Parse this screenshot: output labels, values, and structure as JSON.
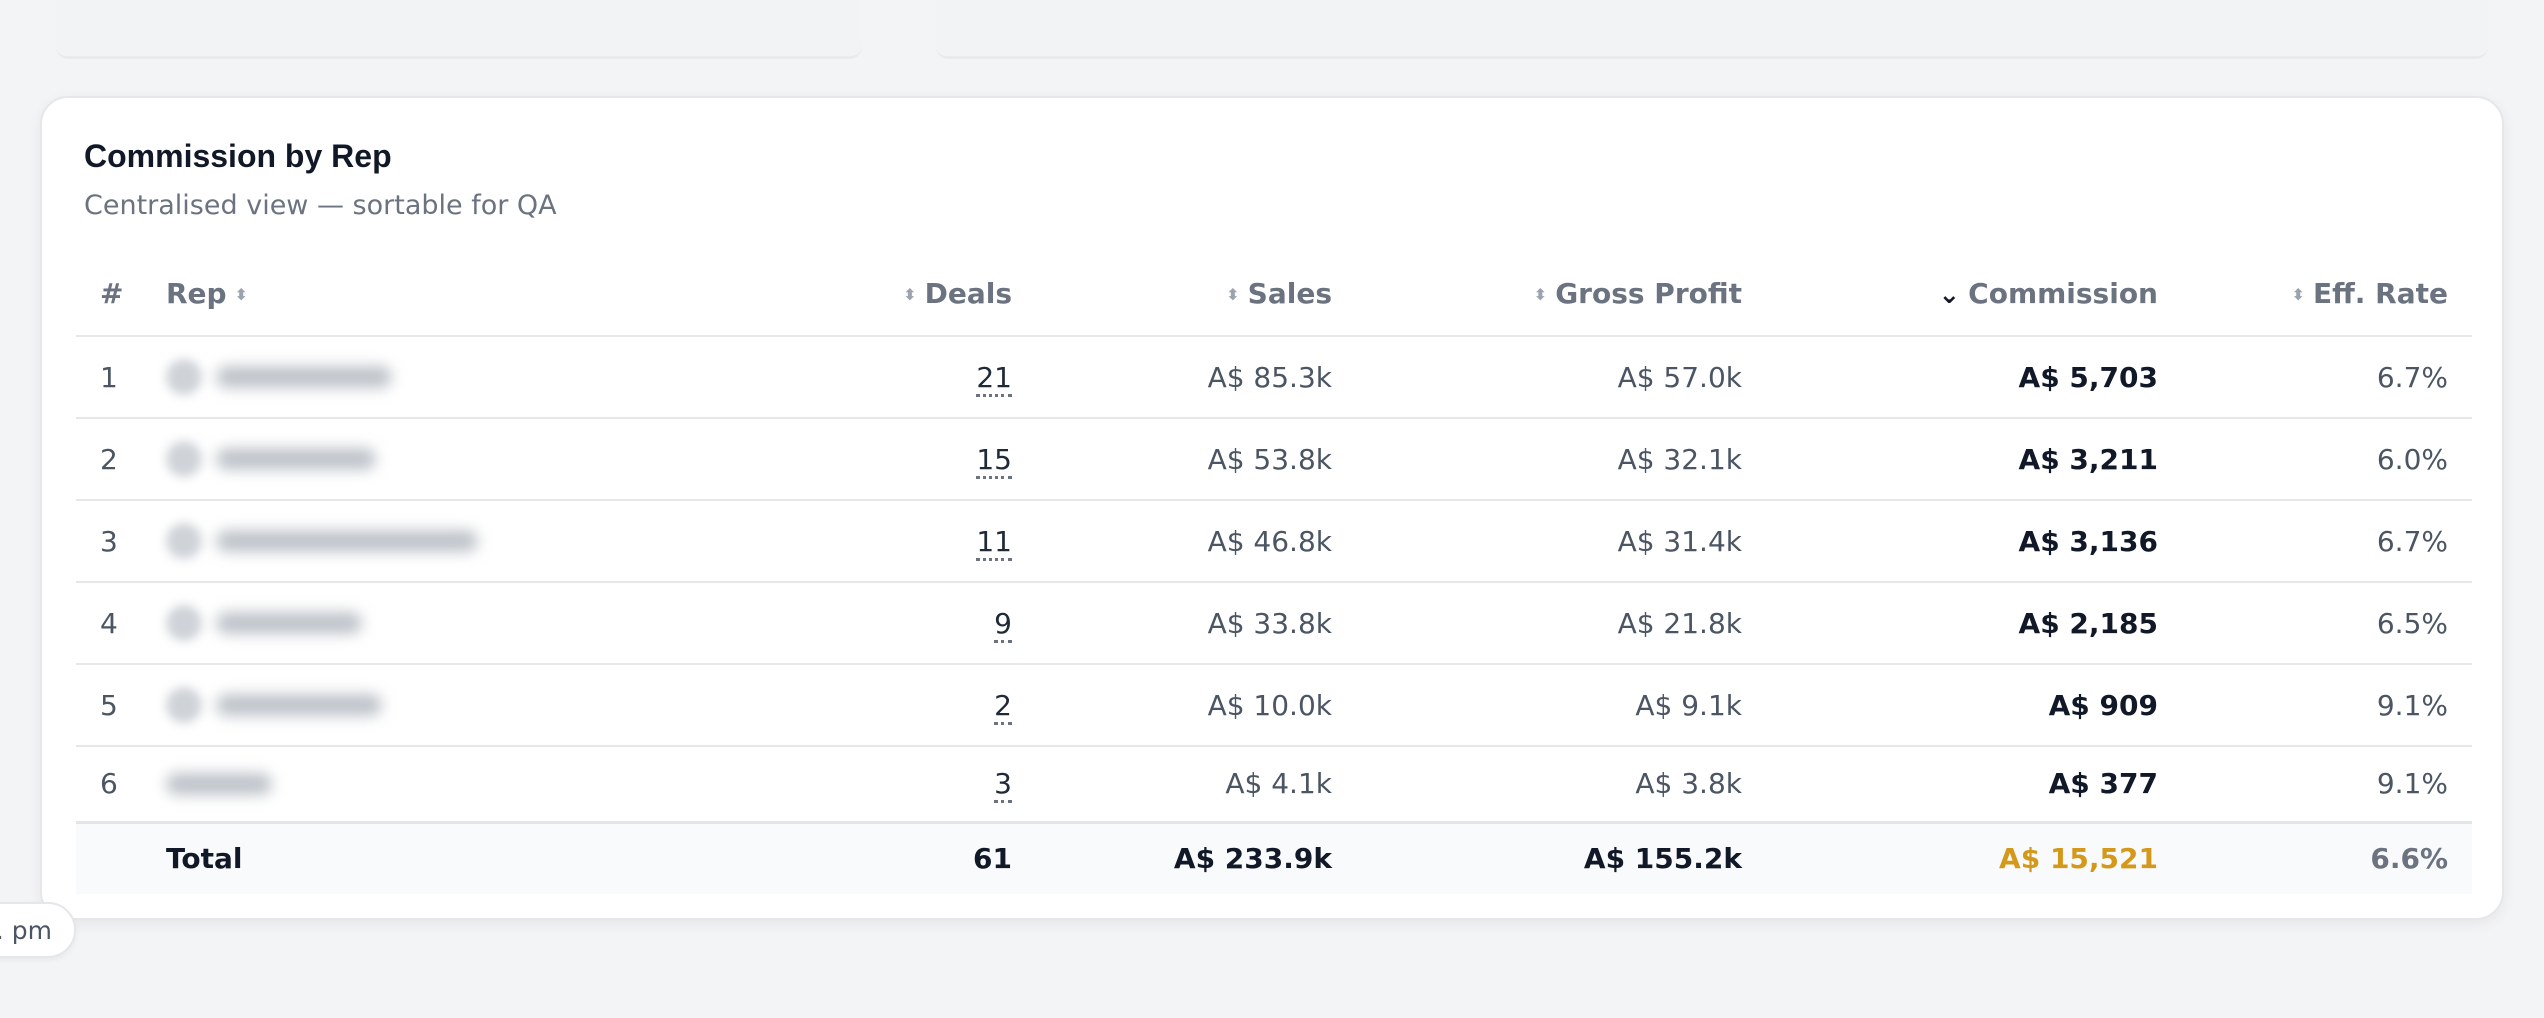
{
  "card": {
    "title": "Commission by Rep",
    "subtitle": "Centralised view — sortable for QA"
  },
  "table": {
    "headers": {
      "index": "#",
      "rep": "Rep",
      "deals": "Deals",
      "sales": "Sales",
      "gross_profit": "Gross Profit",
      "commission": "Commission",
      "eff_rate": "Eff. Rate"
    },
    "sort": {
      "column": "commission",
      "direction": "descending"
    },
    "rows": [
      {
        "index": "1",
        "rep": "",
        "deals": "21",
        "sales": "A$ 85.3k",
        "gross_profit": "A$ 57.0k",
        "commission": "A$ 5,703",
        "eff_rate": "6.7%"
      },
      {
        "index": "2",
        "rep": "",
        "deals": "15",
        "sales": "A$ 53.8k",
        "gross_profit": "A$ 32.1k",
        "commission": "A$ 3,211",
        "eff_rate": "6.0%"
      },
      {
        "index": "3",
        "rep": "",
        "deals": "11",
        "sales": "A$ 46.8k",
        "gross_profit": "A$ 31.4k",
        "commission": "A$ 3,136",
        "eff_rate": "6.7%"
      },
      {
        "index": "4",
        "rep": "",
        "deals": "9",
        "sales": "A$ 33.8k",
        "gross_profit": "A$ 21.8k",
        "commission": "A$ 2,185",
        "eff_rate": "6.5%"
      },
      {
        "index": "5",
        "rep": "",
        "deals": "2",
        "sales": "A$ 10.0k",
        "gross_profit": "A$ 9.1k",
        "commission": "A$ 909",
        "eff_rate": "9.1%"
      },
      {
        "index": "6",
        "rep": "",
        "deals": "3",
        "sales": "A$ 4.1k",
        "gross_profit": "A$ 3.8k",
        "commission": "A$ 377",
        "eff_rate": "9.1%"
      }
    ],
    "total": {
      "label": "Total",
      "deals": "61",
      "sales": "A$ 233.9k",
      "gross_profit": "A$ 155.2k",
      "commission": "A$ 15,521",
      "eff_rate": "6.6%"
    }
  },
  "time_pill": {
    "text": ". pm"
  },
  "icons": {
    "sort": "sort-updown-icon",
    "sort_active": "chevron-down-icon"
  },
  "colors": {
    "accent": "#d4981b",
    "muted_text": "#6b7280",
    "border": "#e5e7eb"
  }
}
